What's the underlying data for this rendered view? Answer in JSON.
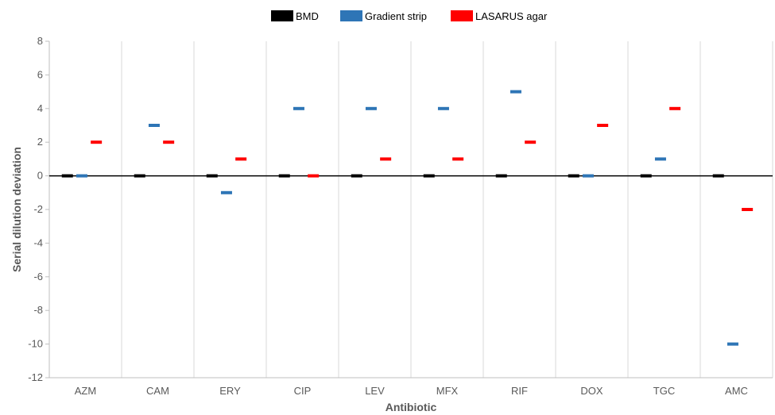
{
  "chart_data": {
    "type": "scatter",
    "xlabel": "Antibiotic",
    "ylabel": "Serial dilution deviation",
    "ylim": [
      -12,
      8
    ],
    "yticks": [
      -12,
      -10,
      -8,
      -6,
      -4,
      -2,
      0,
      2,
      4,
      6,
      8
    ],
    "categories": [
      "AZM",
      "CAM",
      "ERY",
      "CIP",
      "LEV",
      "MFX",
      "RIF",
      "DOX",
      "TGC",
      "AMC"
    ],
    "legend_position": "top-center",
    "grid": "vertical",
    "series": [
      {
        "name": "BMD",
        "color": "#000000",
        "values": [
          0,
          0,
          0,
          0,
          0,
          0,
          0,
          0,
          0,
          0
        ]
      },
      {
        "name": "Gradient strip",
        "color": "#2E75B6",
        "values": [
          0,
          3,
          -1,
          4,
          4,
          4,
          5,
          0,
          1,
          -10
        ]
      },
      {
        "name": "LASARUS agar",
        "color": "#FF0000",
        "values": [
          2,
          2,
          1,
          0,
          1,
          1,
          2,
          3,
          4,
          -2
        ]
      }
    ]
  }
}
